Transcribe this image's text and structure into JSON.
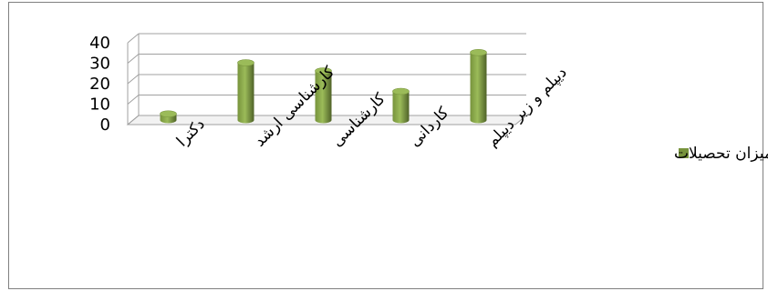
{
  "chart_data": {
    "type": "bar",
    "style": "3d-cylinder",
    "categories": [
      "دکترا",
      "کارشناسی ارشد",
      "کارشناسی",
      "کاردانی",
      "دیپلم و زیر دیپلم"
    ],
    "series": [
      {
        "name": "میزان تحصیلات",
        "values": [
          3,
          28,
          24,
          14,
          33
        ]
      }
    ],
    "ylim": [
      0,
      40
    ],
    "yticks": [
      "0",
      "10",
      "20",
      "30",
      "40"
    ],
    "grid": true,
    "legend": "right",
    "title": "",
    "xlabel": "",
    "ylabel": ""
  },
  "colors": {
    "bar_light": "#9bbb59",
    "bar_mid": "#77933c",
    "bar_dark": "#4f6228",
    "grid": "#a0a0a0",
    "frame": "#808080"
  }
}
